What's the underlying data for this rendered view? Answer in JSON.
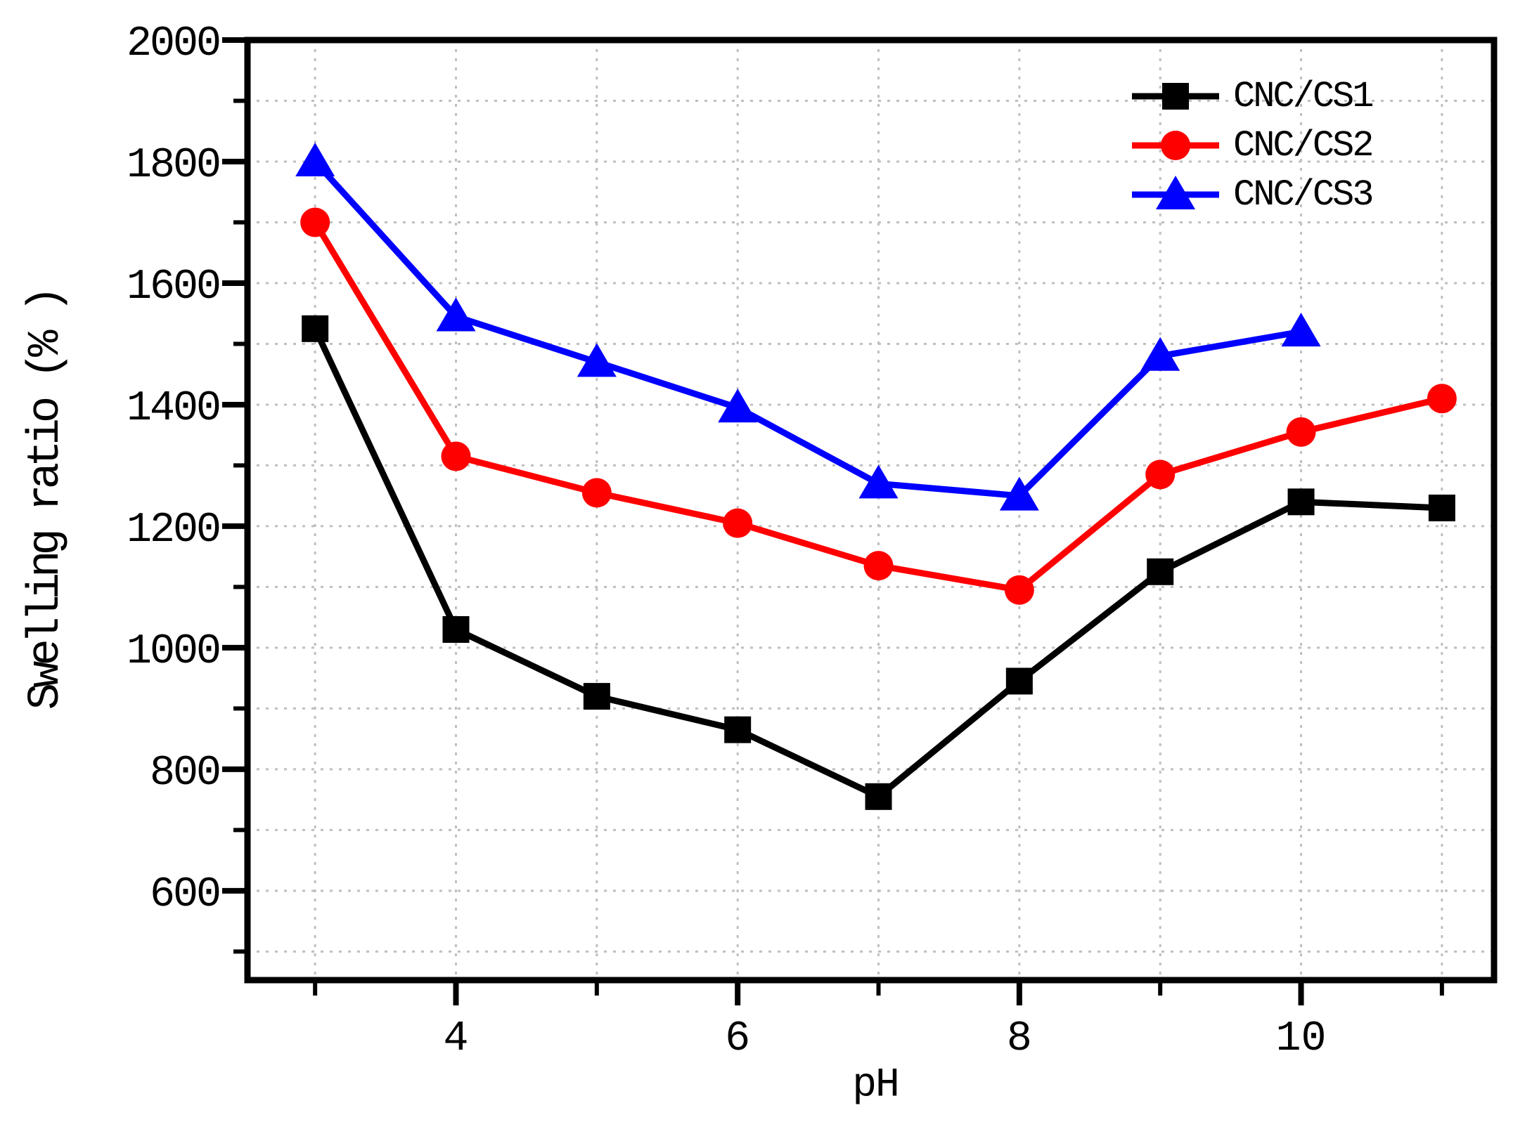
{
  "chart_data": {
    "type": "line",
    "title": "",
    "xlabel": "pH",
    "ylabel": "Swelling ratio (% )",
    "background": "#ffffff",
    "axis_color": "#000000",
    "grid_color": "#bfbfbf",
    "grid": true,
    "legend": {
      "position": "top-right"
    },
    "x_axis": {
      "min": 2.52,
      "max": 11.37,
      "major_ticks": [
        4,
        6,
        8,
        10
      ],
      "minor_ticks": [
        3,
        5,
        7,
        9,
        11
      ],
      "gridlines": [
        3,
        4,
        5,
        6,
        7,
        8,
        9,
        10,
        11
      ]
    },
    "y_axis": {
      "min": 453,
      "max": 2000,
      "major_ticks": [
        600,
        800,
        1000,
        1200,
        1400,
        1600,
        1800,
        2000
      ],
      "minor_ticks": [
        500,
        700,
        900,
        1100,
        1300,
        1500,
        1700,
        1900
      ],
      "gridlines": [
        500,
        600,
        700,
        800,
        900,
        1000,
        1100,
        1200,
        1300,
        1400,
        1500,
        1600,
        1700,
        1800,
        1900
      ]
    },
    "series": [
      {
        "name": "CNC/CS1",
        "color": "#000000",
        "marker": "square",
        "x": [
          3,
          4,
          5,
          6,
          7,
          8,
          9,
          10,
          11
        ],
        "values": [
          1525,
          1030,
          920,
          865,
          755,
          945,
          1125,
          1240,
          1230
        ]
      },
      {
        "name": "CNC/CS2",
        "color": "#ff0000",
        "marker": "circle",
        "x": [
          3,
          4,
          5,
          6,
          7,
          8,
          9,
          10,
          11
        ],
        "values": [
          1700,
          1315,
          1255,
          1205,
          1135,
          1095,
          1285,
          1355,
          1410
        ]
      },
      {
        "name": "CNC/CS3",
        "color": "#0000ff",
        "marker": "triangle",
        "x": [
          3,
          4,
          5,
          6,
          7,
          8,
          9,
          10
        ],
        "values": [
          1800,
          1545,
          1470,
          1395,
          1270,
          1250,
          1480,
          1520
        ]
      }
    ]
  }
}
